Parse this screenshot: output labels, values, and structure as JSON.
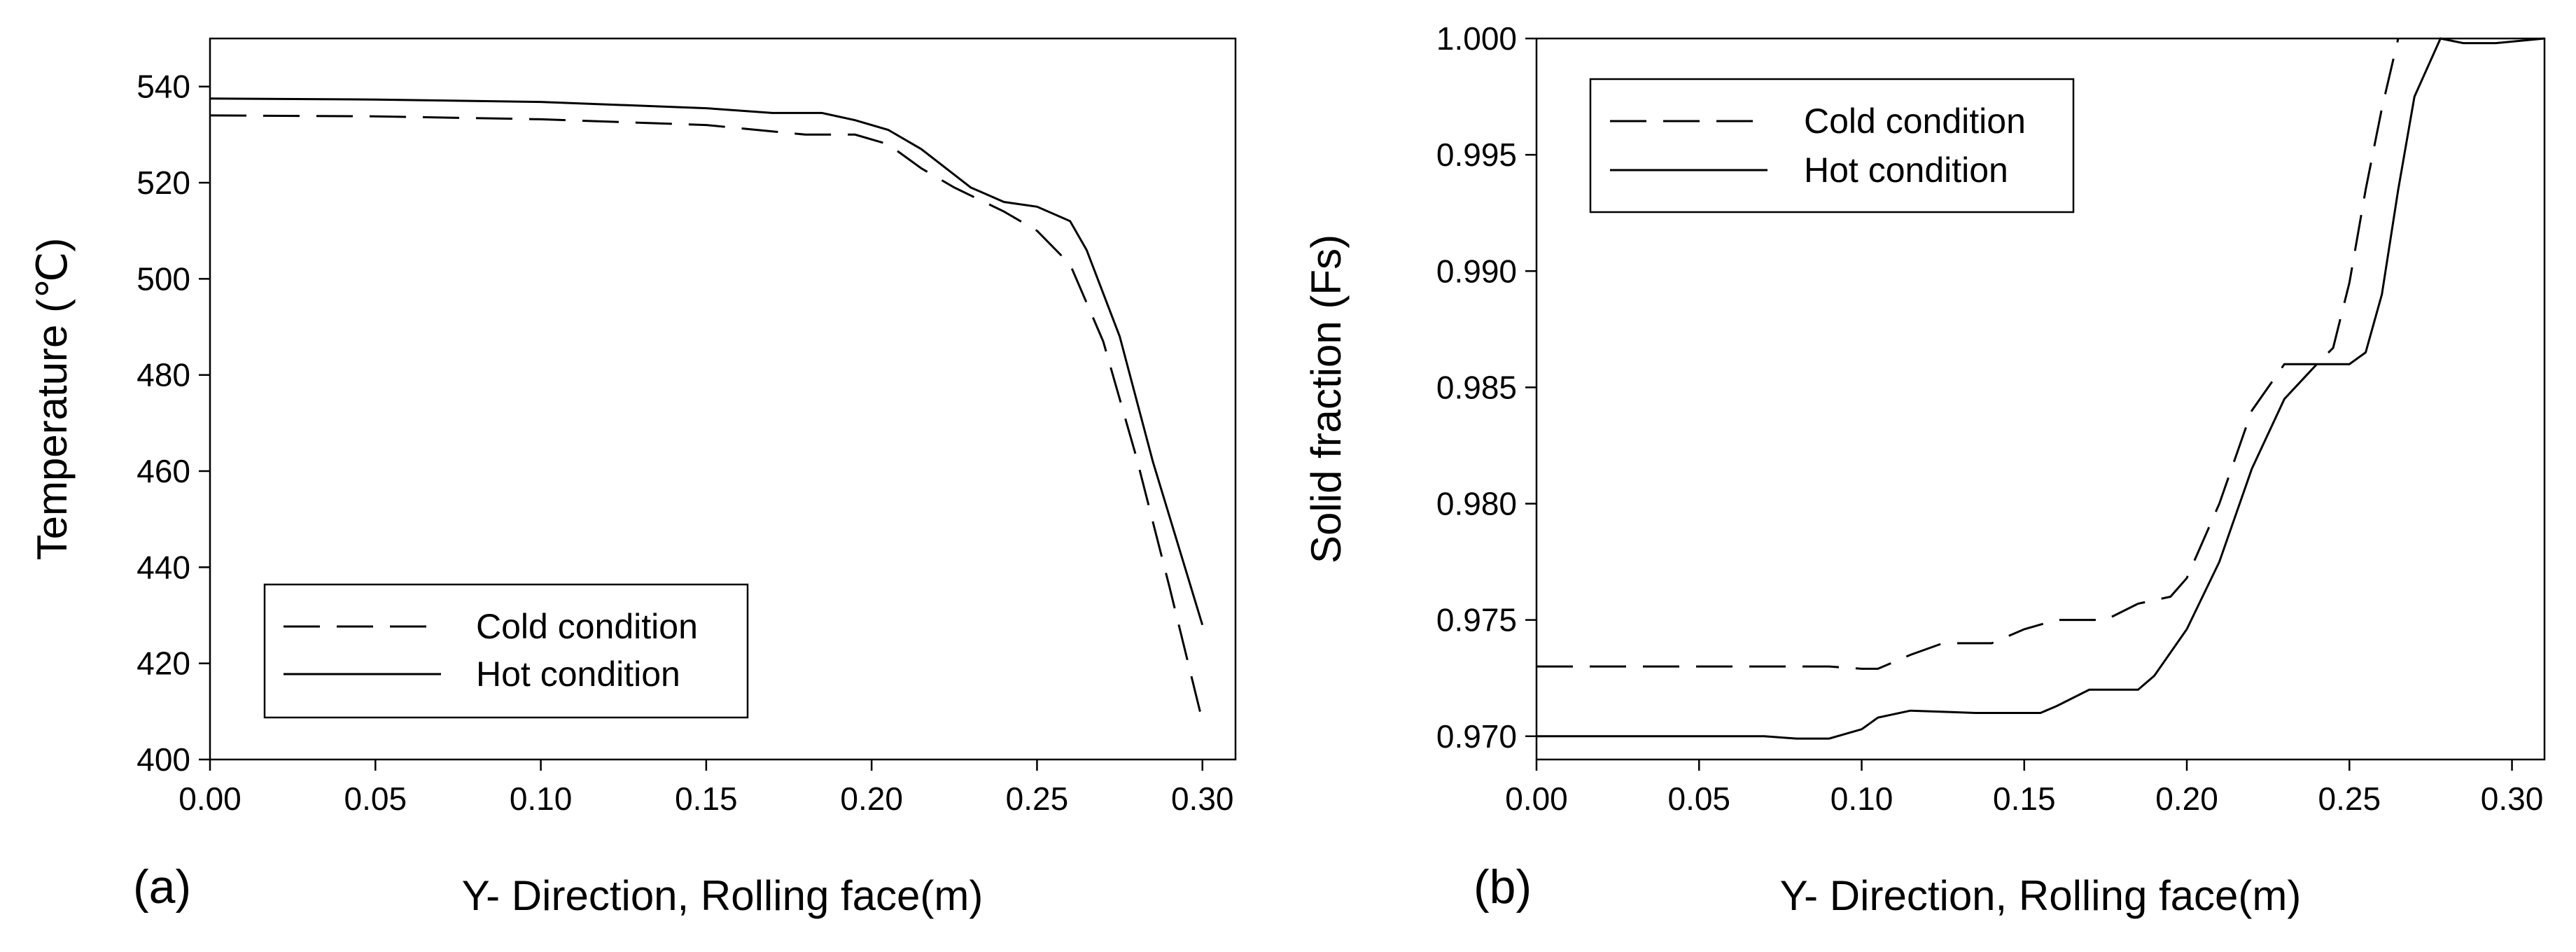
{
  "chart_data": [
    {
      "type": "line",
      "panel_label": "(a)",
      "xlabel": "Y- Direction, Rolling face(m)",
      "ylabel": "Temperature (℃)",
      "xlim": [
        0,
        0.31
      ],
      "ylim": [
        400,
        550
      ],
      "xticks": [
        0,
        0.05,
        0.1,
        0.15,
        0.2,
        0.25,
        0.3
      ],
      "xtick_labels": [
        "0.00",
        "0.05",
        "0.10",
        "0.15",
        "0.20",
        "0.25",
        "0.30"
      ],
      "yticks": [
        400,
        420,
        440,
        460,
        480,
        500,
        520,
        540
      ],
      "ytick_labels": [
        "400",
        "420",
        "440",
        "460",
        "480",
        "500",
        "520",
        "540"
      ],
      "legend_position": "bottom-left",
      "series": [
        {
          "name": "Cold condition",
          "style": "dashed",
          "x": [
            0,
            0.05,
            0.1,
            0.15,
            0.18,
            0.195,
            0.205,
            0.215,
            0.225,
            0.24,
            0.25,
            0.26,
            0.27,
            0.28,
            0.29,
            0.3
          ],
          "y": [
            534,
            533.8,
            533.2,
            532,
            530,
            530,
            528,
            523,
            519,
            514,
            510,
            503,
            487,
            463,
            436,
            408
          ]
        },
        {
          "name": "Hot condition",
          "style": "solid",
          "x": [
            0,
            0.05,
            0.1,
            0.15,
            0.17,
            0.185,
            0.195,
            0.205,
            0.215,
            0.23,
            0.24,
            0.25,
            0.26,
            0.265,
            0.275,
            0.285,
            0.3
          ],
          "y": [
            537.5,
            537.3,
            536.8,
            535.5,
            534.5,
            534.5,
            533,
            531,
            527,
            519,
            516,
            515,
            512,
            506,
            488,
            462,
            428
          ]
        }
      ]
    },
    {
      "type": "line",
      "panel_label": "(b)",
      "xlabel": "Y- Direction, Rolling face(m)",
      "ylabel": "Solid fraction (Fs)",
      "xlim": [
        0,
        0.31
      ],
      "ylim": [
        0.969,
        1.0
      ],
      "xticks": [
        0,
        0.05,
        0.1,
        0.15,
        0.2,
        0.25,
        0.3
      ],
      "xtick_labels": [
        "0.00",
        "0.05",
        "0.10",
        "0.15",
        "0.20",
        "0.25",
        "0.30"
      ],
      "yticks": [
        0.97,
        0.975,
        0.98,
        0.985,
        0.99,
        0.995,
        1.0
      ],
      "ytick_labels": [
        "0.970",
        "0.975",
        "0.980",
        "0.985",
        "0.990",
        "0.995",
        "1.000"
      ],
      "legend_position": "top-left",
      "series": [
        {
          "name": "Cold condition",
          "style": "dashed",
          "x": [
            0,
            0.05,
            0.09,
            0.1,
            0.105,
            0.115,
            0.125,
            0.14,
            0.15,
            0.16,
            0.175,
            0.185,
            0.195,
            0.2,
            0.21,
            0.22,
            0.23,
            0.24,
            0.245,
            0.25,
            0.255,
            0.26,
            0.265
          ],
          "y": [
            0.973,
            0.973,
            0.973,
            0.9729,
            0.9729,
            0.9735,
            0.974,
            0.974,
            0.9746,
            0.975,
            0.975,
            0.9757,
            0.976,
            0.9768,
            0.98,
            0.984,
            0.986,
            0.986,
            0.9867,
            0.9895,
            0.9935,
            0.997,
            1.0
          ]
        },
        {
          "name": "Hot condition",
          "style": "solid",
          "x": [
            0,
            0.07,
            0.08,
            0.09,
            0.1,
            0.105,
            0.115,
            0.135,
            0.155,
            0.16,
            0.17,
            0.185,
            0.19,
            0.2,
            0.21,
            0.22,
            0.23,
            0.24,
            0.245,
            0.25,
            0.255,
            0.26,
            0.265,
            0.27,
            0.278,
            0.285,
            0.295,
            0.31
          ],
          "y": [
            0.97,
            0.97,
            0.9699,
            0.9699,
            0.9703,
            0.9708,
            0.9711,
            0.971,
            0.971,
            0.9713,
            0.972,
            0.972,
            0.9726,
            0.9746,
            0.9775,
            0.9815,
            0.9845,
            0.986,
            0.986,
            0.986,
            0.9865,
            0.989,
            0.9935,
            0.9975,
            1.0,
            0.9998,
            0.9998,
            1.0
          ]
        }
      ]
    }
  ]
}
